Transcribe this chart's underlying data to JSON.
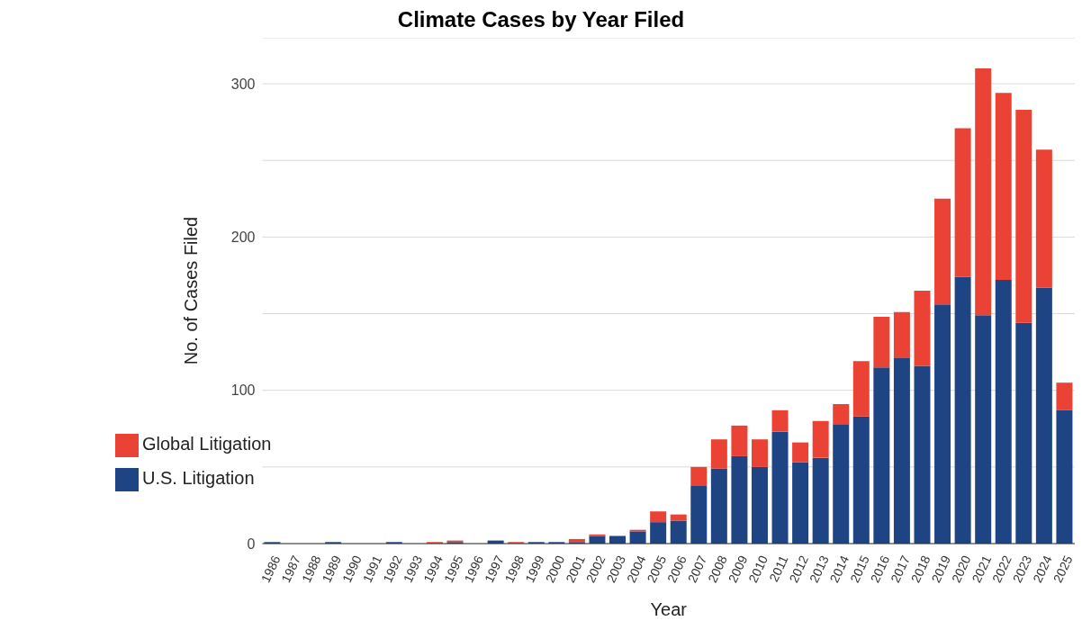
{
  "chart_data": {
    "type": "bar",
    "title": "Climate Cases by Year Filed",
    "xlabel": "Year",
    "ylabel": "No. of Cases Filed",
    "categories": [
      "1986",
      "1987",
      "1988",
      "1989",
      "1990",
      "1991",
      "1992",
      "1993",
      "1994",
      "1995",
      "1996",
      "1997",
      "1998",
      "1999",
      "2000",
      "2001",
      "2002",
      "2003",
      "2004",
      "2005",
      "2006",
      "2007",
      "2008",
      "2009",
      "2010",
      "2011",
      "2012",
      "2013",
      "2014",
      "2015",
      "2016",
      "2017",
      "2018",
      "2019",
      "2020",
      "2021",
      "2022",
      "2023",
      "2024",
      "2025"
    ],
    "stacked": true,
    "series": [
      {
        "name": "U.S. Litigation",
        "color": "#1f4484",
        "values": [
          1,
          0,
          0,
          1,
          0,
          0,
          1,
          0,
          0,
          1,
          0,
          2,
          0,
          1,
          1,
          1,
          5,
          5,
          8,
          14,
          15,
          38,
          49,
          57,
          50,
          73,
          53,
          56,
          78,
          83,
          115,
          121,
          116,
          156,
          174,
          149,
          172,
          144,
          167,
          87
        ]
      },
      {
        "name": "Global Litigation",
        "color": "#ea4335",
        "values": [
          0,
          0,
          0,
          0,
          0,
          0,
          0,
          0,
          1,
          1,
          0,
          0,
          1,
          0,
          0,
          2,
          1,
          0,
          1,
          7,
          4,
          12,
          19,
          20,
          18,
          14,
          13,
          24,
          13,
          36,
          33,
          30,
          49,
          69,
          97,
          161,
          122,
          139,
          90,
          18
        ]
      }
    ],
    "ylim": [
      0,
      330
    ],
    "yticks": [
      0,
      {
        "value": 50,
        "label": null
      },
      100,
      {
        "value": 150,
        "label": null
      },
      200,
      {
        "value": 250,
        "label": null
      },
      300
    ],
    "grid": "y",
    "legend": "left"
  }
}
